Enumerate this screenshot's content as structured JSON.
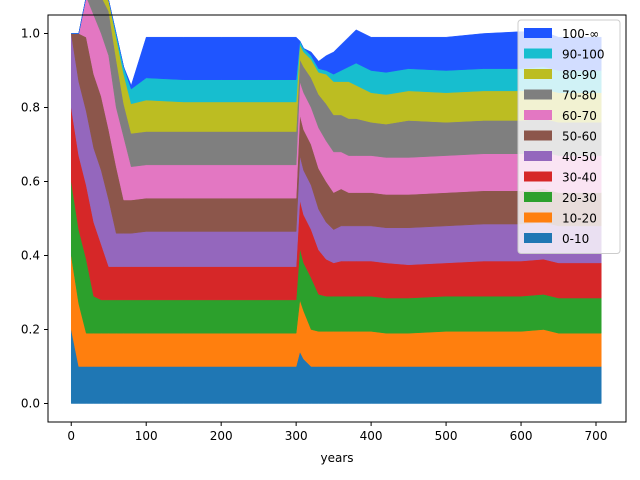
{
  "chart_data": {
    "type": "area",
    "stacked": true,
    "xlabel": "years",
    "ylabel": "",
    "xlim": [
      -31,
      740
    ],
    "ylim": [
      -0.05,
      1.05
    ],
    "xticks": [
      0,
      100,
      200,
      300,
      400,
      500,
      600,
      700
    ],
    "yticks": [
      0.0,
      0.2,
      0.4,
      0.6,
      0.8,
      1.0
    ],
    "ytick_labels": [
      "0.0",
      "0.2",
      "0.4",
      "0.6",
      "0.8",
      "1.0"
    ],
    "grid": false,
    "legend_position": "upper right",
    "x": [
      0,
      10,
      20,
      30,
      40,
      50,
      60,
      70,
      80,
      100,
      150,
      200,
      250,
      300,
      305,
      310,
      320,
      330,
      340,
      350,
      360,
      370,
      380,
      400,
      420,
      450,
      500,
      550,
      600,
      630,
      650,
      700,
      707
    ],
    "series": [
      {
        "name": "0-10",
        "color": "#1f77b4",
        "values": [
          0.2,
          0.1,
          0.1,
          0.1,
          0.1,
          0.1,
          0.1,
          0.1,
          0.1,
          0.1,
          0.1,
          0.1,
          0.1,
          0.1,
          0.14,
          0.12,
          0.1,
          0.1,
          0.1,
          0.1,
          0.1,
          0.1,
          0.1,
          0.1,
          0.1,
          0.1,
          0.1,
          0.1,
          0.1,
          0.1,
          0.1,
          0.1,
          0.1
        ]
      },
      {
        "name": "10-20",
        "color": "#ff7f0e",
        "values": [
          0.2,
          0.17,
          0.09,
          0.09,
          0.09,
          0.09,
          0.09,
          0.09,
          0.09,
          0.09,
          0.09,
          0.09,
          0.09,
          0.09,
          0.14,
          0.13,
          0.1,
          0.095,
          0.095,
          0.095,
          0.095,
          0.095,
          0.095,
          0.095,
          0.09,
          0.09,
          0.095,
          0.095,
          0.095,
          0.1,
          0.09,
          0.09,
          0.09
        ]
      },
      {
        "name": "20-30",
        "color": "#2ca02c",
        "values": [
          0.2,
          0.2,
          0.2,
          0.1,
          0.09,
          0.09,
          0.09,
          0.09,
          0.09,
          0.09,
          0.09,
          0.09,
          0.09,
          0.09,
          0.14,
          0.13,
          0.14,
          0.1,
          0.095,
          0.095,
          0.095,
          0.095,
          0.095,
          0.095,
          0.095,
          0.095,
          0.095,
          0.095,
          0.095,
          0.095,
          0.095,
          0.095,
          0.095
        ]
      },
      {
        "name": "30-40",
        "color": "#d62728",
        "values": [
          0.2,
          0.2,
          0.2,
          0.2,
          0.15,
          0.09,
          0.09,
          0.09,
          0.09,
          0.09,
          0.09,
          0.09,
          0.09,
          0.09,
          0.13,
          0.13,
          0.13,
          0.12,
          0.1,
          0.09,
          0.095,
          0.095,
          0.095,
          0.095,
          0.095,
          0.09,
          0.09,
          0.095,
          0.095,
          0.095,
          0.095,
          0.095,
          0.095
        ]
      },
      {
        "name": "40-50",
        "color": "#9467bd",
        "values": [
          0.2,
          0.2,
          0.2,
          0.2,
          0.2,
          0.18,
          0.09,
          0.09,
          0.09,
          0.095,
          0.095,
          0.095,
          0.095,
          0.095,
          0.12,
          0.12,
          0.12,
          0.11,
          0.1,
          0.09,
          0.095,
          0.095,
          0.095,
          0.095,
          0.095,
          0.1,
          0.1,
          0.1,
          0.1,
          0.1,
          0.1,
          0.1,
          0.1
        ]
      },
      {
        "name": "50-60",
        "color": "#8c564b",
        "values": [
          0.0,
          0.13,
          0.2,
          0.2,
          0.2,
          0.19,
          0.18,
          0.09,
          0.09,
          0.09,
          0.09,
          0.09,
          0.09,
          0.09,
          0.11,
          0.11,
          0.11,
          0.11,
          0.11,
          0.1,
          0.1,
          0.09,
          0.09,
          0.09,
          0.09,
          0.09,
          0.09,
          0.09,
          0.09,
          0.09,
          0.09,
          0.09,
          0.09
        ]
      },
      {
        "name": "60-70",
        "color": "#e377c2",
        "values": [
          0.0,
          0.0,
          0.11,
          0.16,
          0.17,
          0.2,
          0.16,
          0.17,
          0.09,
          0.09,
          0.09,
          0.09,
          0.09,
          0.09,
          0.09,
          0.1,
          0.1,
          0.11,
          0.11,
          0.11,
          0.1,
          0.1,
          0.1,
          0.1,
          0.1,
          0.1,
          0.1,
          0.1,
          0.1,
          0.1,
          0.1,
          0.1,
          0.1
        ]
      },
      {
        "name": "70-80",
        "color": "#7f7f7f",
        "values": [
          0.0,
          0.0,
          0.0,
          0.05,
          0.1,
          0.12,
          0.13,
          0.09,
          0.09,
          0.09,
          0.09,
          0.09,
          0.09,
          0.09,
          0.06,
          0.07,
          0.08,
          0.09,
          0.1,
          0.1,
          0.1,
          0.1,
          0.1,
          0.09,
          0.09,
          0.1,
          0.09,
          0.09,
          0.09,
          0.09,
          0.09,
          0.09,
          0.09
        ]
      },
      {
        "name": "80-90",
        "color": "#bcbd22",
        "values": [
          0.0,
          0.0,
          0.0,
          0.0,
          0.0,
          0.03,
          0.06,
          0.08,
          0.08,
          0.085,
          0.08,
          0.08,
          0.08,
          0.08,
          0.04,
          0.04,
          0.05,
          0.06,
          0.08,
          0.09,
          0.09,
          0.1,
          0.09,
          0.08,
          0.08,
          0.08,
          0.08,
          0.08,
          0.08,
          0.08,
          0.08,
          0.08,
          0.08
        ]
      },
      {
        "name": "90-100",
        "color": "#17becf",
        "values": [
          0.0,
          0.0,
          0.0,
          0.0,
          0.0,
          0.0,
          0.01,
          0.02,
          0.04,
          0.06,
          0.06,
          0.06,
          0.06,
          0.06,
          0.01,
          0.01,
          0.01,
          0.01,
          0.01,
          0.02,
          0.03,
          0.04,
          0.06,
          0.06,
          0.06,
          0.06,
          0.06,
          0.06,
          0.06,
          0.06,
          0.06,
          0.06,
          0.06
        ]
      },
      {
        "name": "100-∞",
        "color": "#1f55ff",
        "values": [
          0.0,
          0.0,
          0.0,
          0.0,
          0.0,
          0.0,
          0.0,
          0.0,
          0.01,
          0.11,
          0.115,
          0.115,
          0.115,
          0.115,
          0.0,
          0.0,
          0.01,
          0.02,
          0.04,
          0.06,
          0.07,
          0.08,
          0.09,
          0.09,
          0.095,
          0.085,
          0.09,
          0.095,
          0.1,
          0.095,
          0.09,
          0.09,
          0.09
        ]
      }
    ]
  }
}
